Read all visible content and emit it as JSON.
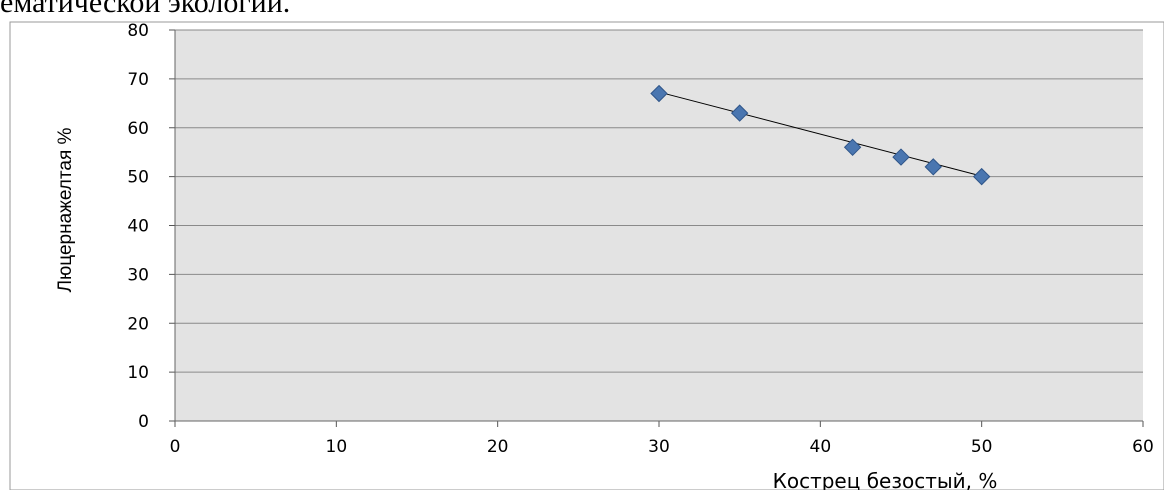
{
  "page": {
    "top_text": "ематической экологии."
  },
  "chart_data": {
    "type": "scatter",
    "title": "",
    "xlabel": "Кострец безостый, %",
    "ylabel": "Люцернажелтая %",
    "xlim": [
      0,
      60
    ],
    "ylim": [
      0,
      80
    ],
    "x_ticks": [
      0,
      10,
      20,
      30,
      40,
      50,
      60
    ],
    "y_ticks": [
      0,
      10,
      20,
      30,
      40,
      50,
      60,
      70,
      80
    ],
    "grid": "horizontal",
    "marker": "diamond",
    "colors": {
      "plot_bg": "#e3e3e3",
      "marker": "#4a76b0",
      "marker_edge": "#2f5589",
      "trendline": "#000000",
      "grid": "#8a8a8a"
    },
    "series": [
      {
        "x": [
          30,
          35,
          42,
          45,
          47,
          50
        ],
        "y": [
          67,
          63,
          56,
          54,
          52,
          50
        ]
      }
    ],
    "trendline": {
      "type": "linear",
      "x": [
        30,
        50
      ],
      "y": [
        67.3,
        50.1
      ]
    }
  }
}
